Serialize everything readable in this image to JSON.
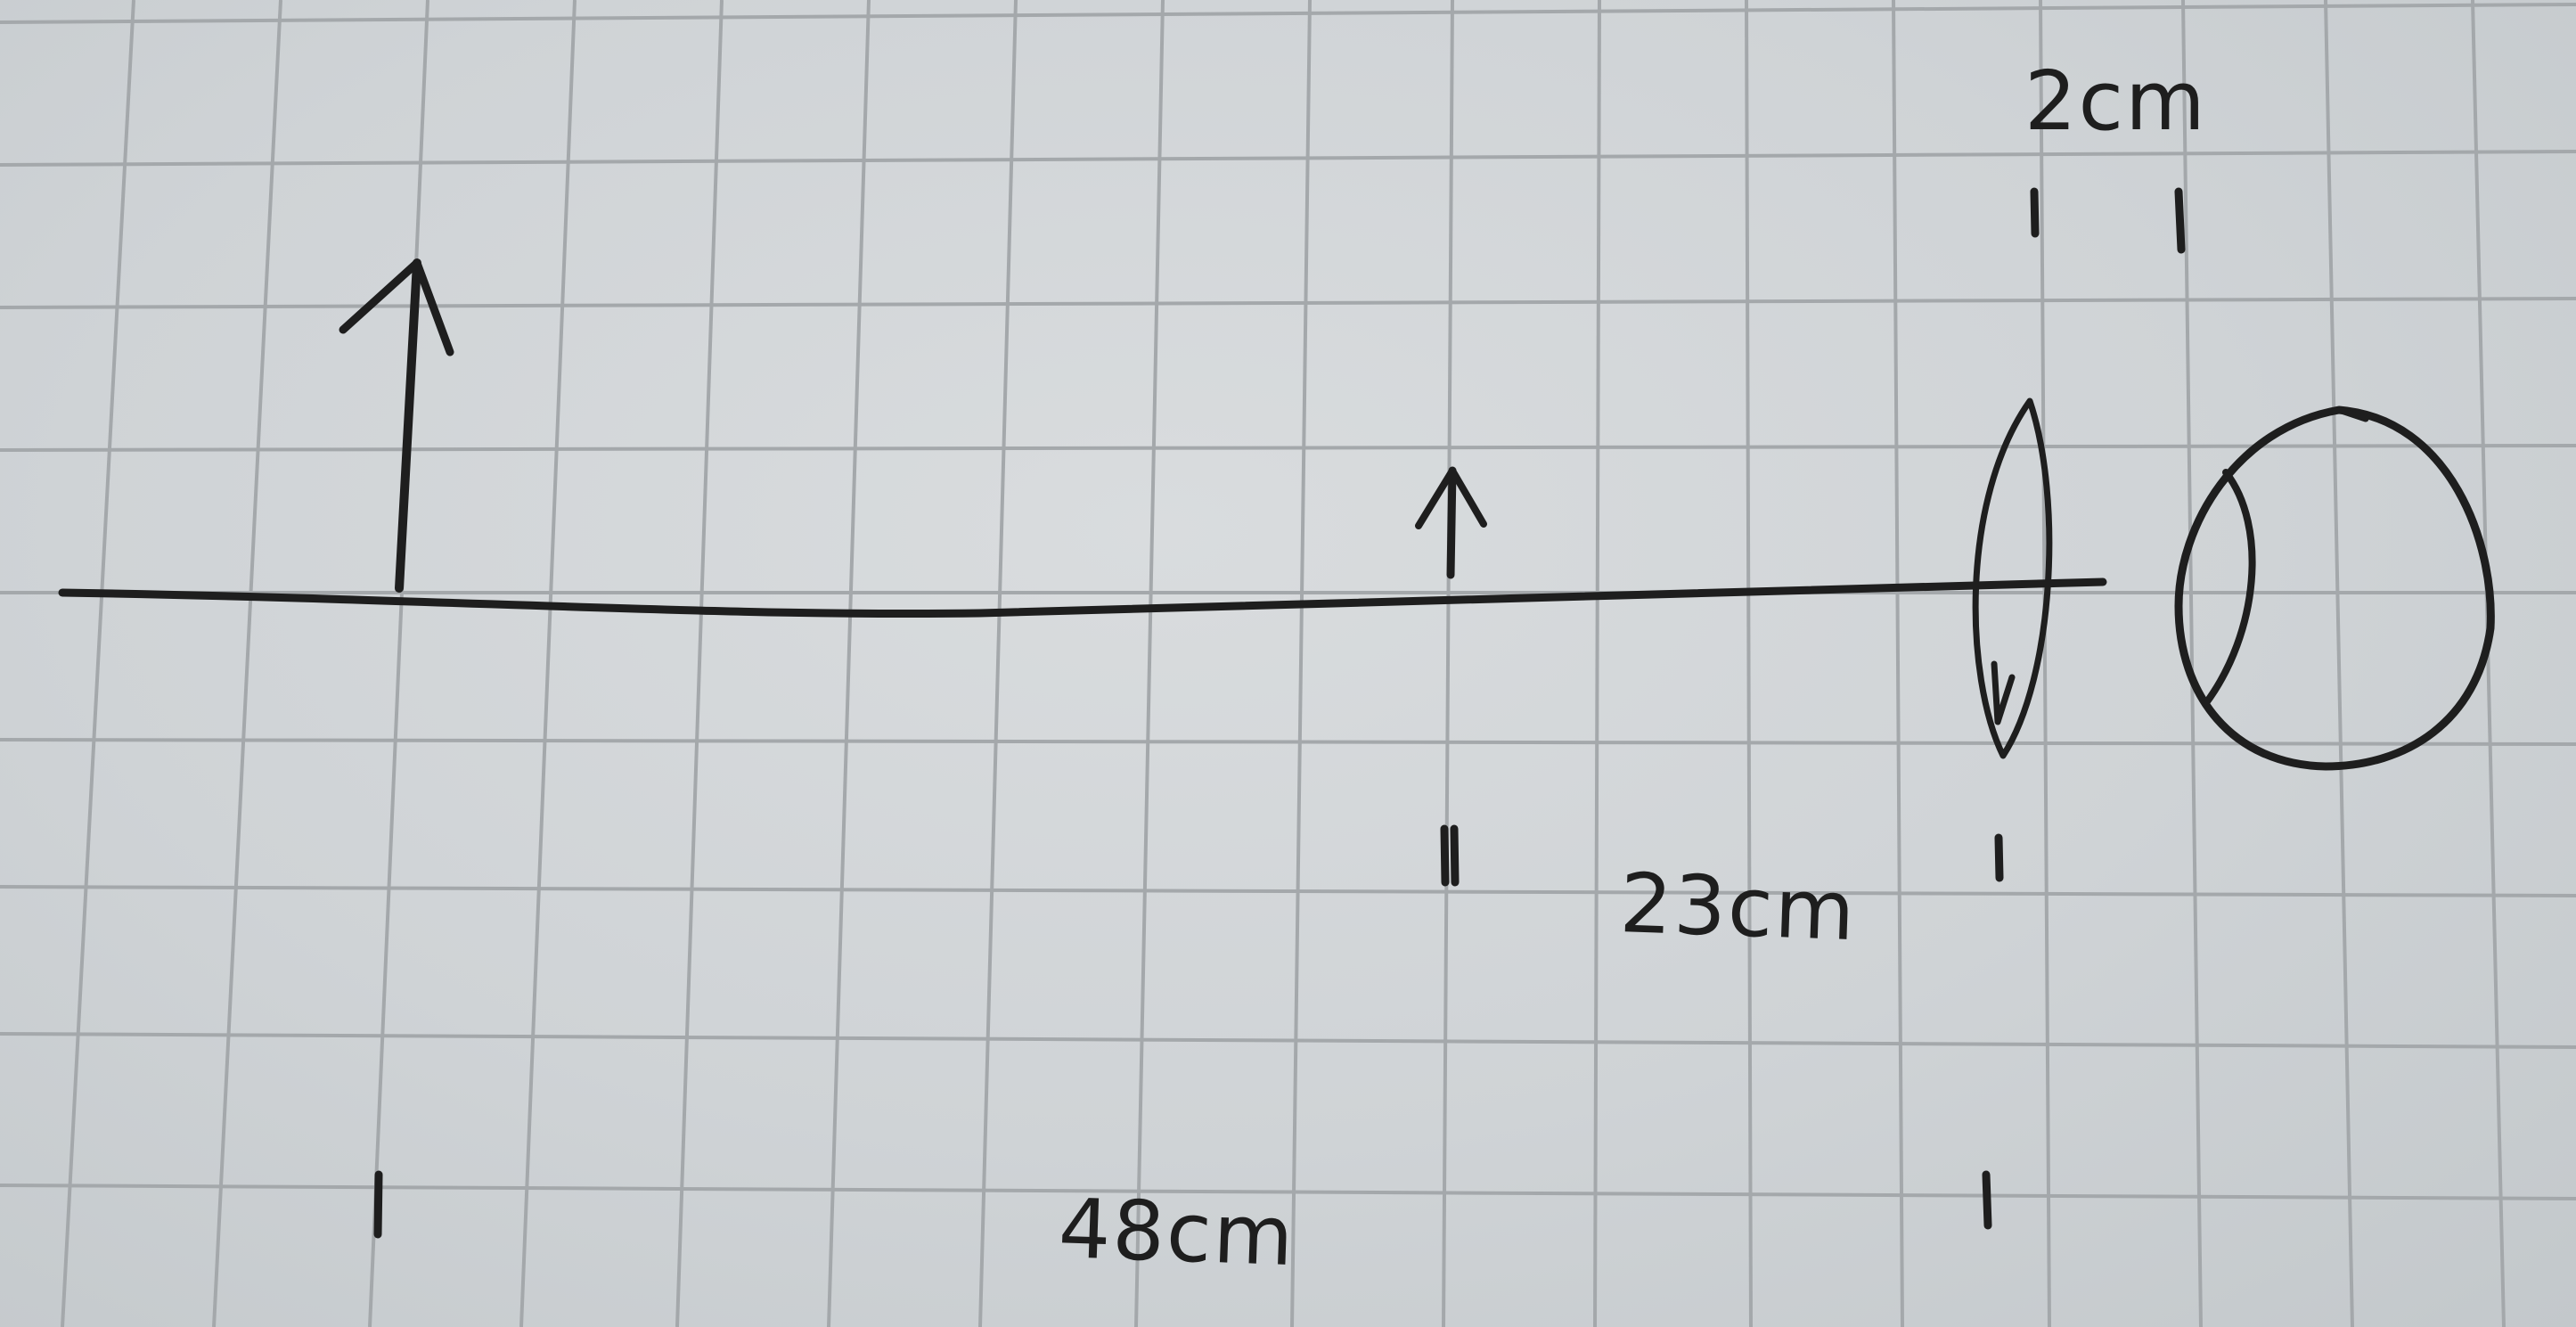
{
  "labels": {
    "eye_lens_distance": "2cm",
    "small_object_lens_distance": "23cm",
    "large_object_lens_distance": "48cm"
  },
  "colors": {
    "paper": "#d2d5d8",
    "grid": "#a4a8ab",
    "ink": "#1e1e1e"
  }
}
